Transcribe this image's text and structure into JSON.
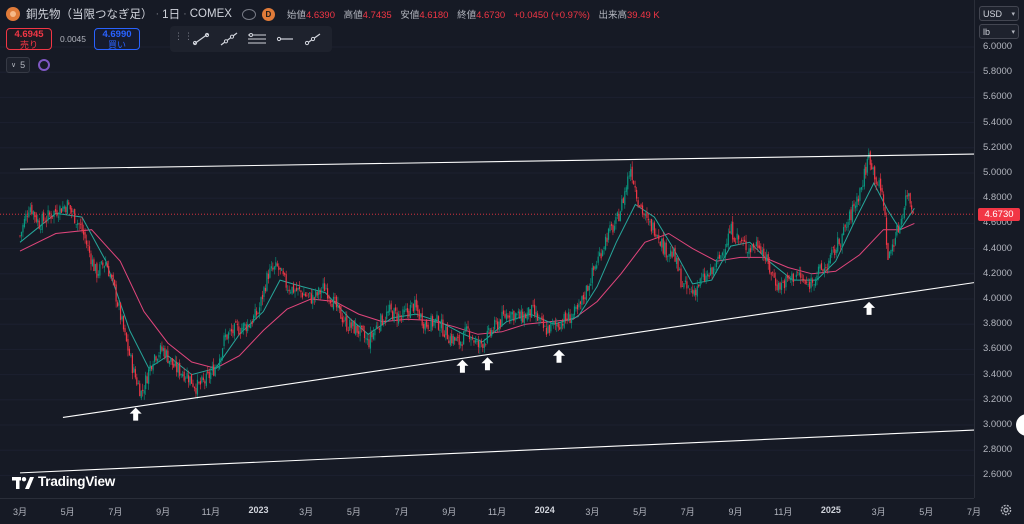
{
  "legend": {
    "symbol_icon": "copper-symbol-icon",
    "title": "銅先物（当限つなぎ足）",
    "interval": "1日",
    "exchange": "COMEX",
    "badge": "D",
    "open_label": "始値",
    "open": "4.6390",
    "high_label": "高値",
    "high": "4.7435",
    "low_label": "安値",
    "low": "4.6180",
    "close_label": "終値",
    "close": "4.6730",
    "change": "+0.0450 (+0.97%)",
    "volume_label": "出来高",
    "volume": "39.49 K"
  },
  "trade": {
    "sell_price": "4.6945",
    "sell_label": "売り",
    "spread": "0.0045",
    "buy_price": "4.6990",
    "buy_label": "買い"
  },
  "indicators": {
    "count": "5",
    "toggle_icon": "chevron-down-icon"
  },
  "drawing_tools": [
    "trend-line-icon",
    "extended-line-icon",
    "parallel-channel-icon",
    "horizontal-ray-icon",
    "info-line-icon"
  ],
  "currency_select": "USD",
  "unit_select": "lb",
  "last_price_badge": "4.6730",
  "colors": {
    "background": "#161a25",
    "up": "#089981",
    "down": "#f23645",
    "ma_fast": "#26a69a",
    "ma_slow": "#e0457b",
    "trendline": "#ffffff",
    "price_line": "#f23645"
  },
  "brand": "TradingView",
  "chart_data": {
    "type": "candlestick",
    "y_ticks": [
      "6.0000",
      "5.8000",
      "5.6000",
      "5.4000",
      "5.2000",
      "5.0000",
      "4.8000",
      "4.6000",
      "4.4000",
      "4.2000",
      "4.0000",
      "3.8000",
      "3.6000",
      "3.4000",
      "3.2000",
      "3.0000",
      "2.8000",
      "2.6000"
    ],
    "x_ticks": [
      {
        "label": "3月",
        "bold": false
      },
      {
        "label": "5月",
        "bold": false
      },
      {
        "label": "7月",
        "bold": false
      },
      {
        "label": "9月",
        "bold": false
      },
      {
        "label": "11月",
        "bold": false
      },
      {
        "label": "2023",
        "bold": true
      },
      {
        "label": "3月",
        "bold": false
      },
      {
        "label": "5月",
        "bold": false
      },
      {
        "label": "7月",
        "bold": false
      },
      {
        "label": "9月",
        "bold": false
      },
      {
        "label": "11月",
        "bold": false
      },
      {
        "label": "2024",
        "bold": true
      },
      {
        "label": "3月",
        "bold": false
      },
      {
        "label": "5月",
        "bold": false
      },
      {
        "label": "7月",
        "bold": false
      },
      {
        "label": "9月",
        "bold": false
      },
      {
        "label": "11月",
        "bold": false
      },
      {
        "label": "2025",
        "bold": true
      },
      {
        "label": "3月",
        "bold": false
      },
      {
        "label": "5月",
        "bold": false
      },
      {
        "label": "7月",
        "bold": false
      }
    ],
    "x_months_from": "2022-03",
    "y_range": [
      2.52,
      6.05
    ],
    "last_price": 4.673,
    "closes_anchor": [
      {
        "m": 0.0,
        "v": 4.5
      },
      {
        "m": 0.4,
        "v": 4.75
      },
      {
        "m": 0.8,
        "v": 4.6
      },
      {
        "m": 1.5,
        "v": 4.7
      },
      {
        "m": 2.0,
        "v": 4.75
      },
      {
        "m": 2.6,
        "v": 4.55
      },
      {
        "m": 3.2,
        "v": 4.2
      },
      {
        "m": 3.6,
        "v": 4.3
      },
      {
        "m": 4.0,
        "v": 4.05
      },
      {
        "m": 4.4,
        "v": 3.7
      },
      {
        "m": 4.8,
        "v": 3.4
      },
      {
        "m": 5.1,
        "v": 3.25
      },
      {
        "m": 5.6,
        "v": 3.55
      },
      {
        "m": 6.0,
        "v": 3.6
      },
      {
        "m": 6.5,
        "v": 3.45
      },
      {
        "m": 7.0,
        "v": 3.4
      },
      {
        "m": 7.4,
        "v": 3.3
      },
      {
        "m": 7.8,
        "v": 3.35
      },
      {
        "m": 8.3,
        "v": 3.5
      },
      {
        "m": 8.6,
        "v": 3.7
      },
      {
        "m": 9.0,
        "v": 3.75
      },
      {
        "m": 9.6,
        "v": 3.8
      },
      {
        "m": 10.0,
        "v": 3.9
      },
      {
        "m": 10.4,
        "v": 4.2
      },
      {
        "m": 10.8,
        "v": 4.25
      },
      {
        "m": 11.2,
        "v": 4.1
      },
      {
        "m": 11.8,
        "v": 4.05
      },
      {
        "m": 12.3,
        "v": 4.0
      },
      {
        "m": 12.8,
        "v": 4.1
      },
      {
        "m": 13.2,
        "v": 3.95
      },
      {
        "m": 13.7,
        "v": 3.8
      },
      {
        "m": 14.2,
        "v": 3.75
      },
      {
        "m": 14.6,
        "v": 3.65
      },
      {
        "m": 15.0,
        "v": 3.8
      },
      {
        "m": 15.5,
        "v": 3.9
      },
      {
        "m": 16.0,
        "v": 3.85
      },
      {
        "m": 16.5,
        "v": 3.95
      },
      {
        "m": 17.0,
        "v": 3.8
      },
      {
        "m": 17.5,
        "v": 3.82
      },
      {
        "m": 18.0,
        "v": 3.7
      },
      {
        "m": 18.4,
        "v": 3.65
      },
      {
        "m": 18.8,
        "v": 3.75
      },
      {
        "m": 19.2,
        "v": 3.62
      },
      {
        "m": 19.6,
        "v": 3.7
      },
      {
        "m": 20.0,
        "v": 3.8
      },
      {
        "m": 20.5,
        "v": 3.9
      },
      {
        "m": 21.0,
        "v": 3.85
      },
      {
        "m": 21.5,
        "v": 3.9
      },
      {
        "m": 22.0,
        "v": 3.75
      },
      {
        "m": 22.5,
        "v": 3.8
      },
      {
        "m": 23.0,
        "v": 3.85
      },
      {
        "m": 23.4,
        "v": 3.9
      },
      {
        "m": 23.8,
        "v": 4.1
      },
      {
        "m": 24.2,
        "v": 4.3
      },
      {
        "m": 24.6,
        "v": 4.5
      },
      {
        "m": 25.0,
        "v": 4.6
      },
      {
        "m": 25.3,
        "v": 4.8
      },
      {
        "m": 25.6,
        "v": 5.05
      },
      {
        "m": 25.9,
        "v": 4.8
      },
      {
        "m": 26.3,
        "v": 4.6
      },
      {
        "m": 26.7,
        "v": 4.55
      },
      {
        "m": 27.0,
        "v": 4.4
      },
      {
        "m": 27.4,
        "v": 4.35
      },
      {
        "m": 27.8,
        "v": 4.1
      },
      {
        "m": 28.2,
        "v": 4.05
      },
      {
        "m": 28.6,
        "v": 4.15
      },
      {
        "m": 29.0,
        "v": 4.2
      },
      {
        "m": 29.4,
        "v": 4.35
      },
      {
        "m": 29.8,
        "v": 4.55
      },
      {
        "m": 30.2,
        "v": 4.45
      },
      {
        "m": 30.6,
        "v": 4.4
      },
      {
        "m": 31.0,
        "v": 4.45
      },
      {
        "m": 31.4,
        "v": 4.25
      },
      {
        "m": 31.8,
        "v": 4.1
      },
      {
        "m": 32.2,
        "v": 4.15
      },
      {
        "m": 32.6,
        "v": 4.2
      },
      {
        "m": 33.0,
        "v": 4.1
      },
      {
        "m": 33.4,
        "v": 4.2
      },
      {
        "m": 33.8,
        "v": 4.25
      },
      {
        "m": 34.2,
        "v": 4.4
      },
      {
        "m": 34.6,
        "v": 4.55
      },
      {
        "m": 35.0,
        "v": 4.75
      },
      {
        "m": 35.3,
        "v": 4.9
      },
      {
        "m": 35.6,
        "v": 5.15
      },
      {
        "m": 35.9,
        "v": 4.95
      },
      {
        "m": 36.2,
        "v": 4.8
      },
      {
        "m": 36.4,
        "v": 4.3
      },
      {
        "m": 36.6,
        "v": 4.45
      },
      {
        "m": 36.9,
        "v": 4.6
      },
      {
        "m": 37.2,
        "v": 4.85
      },
      {
        "m": 37.5,
        "v": 4.67
      }
    ],
    "ma_fast_anchor": [
      {
        "m": 0.0,
        "v": 4.45
      },
      {
        "m": 1.5,
        "v": 4.68
      },
      {
        "m": 2.6,
        "v": 4.65
      },
      {
        "m": 3.6,
        "v": 4.3
      },
      {
        "m": 4.6,
        "v": 3.75
      },
      {
        "m": 5.4,
        "v": 3.45
      },
      {
        "m": 6.2,
        "v": 3.55
      },
      {
        "m": 7.2,
        "v": 3.4
      },
      {
        "m": 8.2,
        "v": 3.45
      },
      {
        "m": 9.2,
        "v": 3.72
      },
      {
        "m": 10.2,
        "v": 3.9
      },
      {
        "m": 10.9,
        "v": 4.15
      },
      {
        "m": 11.8,
        "v": 4.1
      },
      {
        "m": 12.8,
        "v": 4.05
      },
      {
        "m": 13.8,
        "v": 3.85
      },
      {
        "m": 14.6,
        "v": 3.72
      },
      {
        "m": 15.6,
        "v": 3.85
      },
      {
        "m": 16.6,
        "v": 3.88
      },
      {
        "m": 17.6,
        "v": 3.82
      },
      {
        "m": 18.6,
        "v": 3.72
      },
      {
        "m": 19.4,
        "v": 3.66
      },
      {
        "m": 20.4,
        "v": 3.82
      },
      {
        "m": 21.4,
        "v": 3.88
      },
      {
        "m": 22.4,
        "v": 3.8
      },
      {
        "m": 23.4,
        "v": 3.86
      },
      {
        "m": 24.2,
        "v": 4.1
      },
      {
        "m": 25.0,
        "v": 4.45
      },
      {
        "m": 25.8,
        "v": 4.75
      },
      {
        "m": 26.6,
        "v": 4.65
      },
      {
        "m": 27.4,
        "v": 4.4
      },
      {
        "m": 28.2,
        "v": 4.12
      },
      {
        "m": 29.0,
        "v": 4.15
      },
      {
        "m": 29.8,
        "v": 4.42
      },
      {
        "m": 30.6,
        "v": 4.45
      },
      {
        "m": 31.4,
        "v": 4.3
      },
      {
        "m": 32.4,
        "v": 4.15
      },
      {
        "m": 33.4,
        "v": 4.15
      },
      {
        "m": 34.2,
        "v": 4.3
      },
      {
        "m": 35.0,
        "v": 4.62
      },
      {
        "m": 35.8,
        "v": 4.92
      },
      {
        "m": 36.4,
        "v": 4.7
      },
      {
        "m": 36.9,
        "v": 4.55
      },
      {
        "m": 37.5,
        "v": 4.72
      }
    ],
    "ma_slow_anchor": [
      {
        "m": 0.0,
        "v": 4.38
      },
      {
        "m": 1.5,
        "v": 4.52
      },
      {
        "m": 3.0,
        "v": 4.55
      },
      {
        "m": 4.2,
        "v": 4.3
      },
      {
        "m": 5.2,
        "v": 3.9
      },
      {
        "m": 6.2,
        "v": 3.65
      },
      {
        "m": 7.2,
        "v": 3.5
      },
      {
        "m": 8.2,
        "v": 3.45
      },
      {
        "m": 9.2,
        "v": 3.55
      },
      {
        "m": 10.2,
        "v": 3.75
      },
      {
        "m": 11.2,
        "v": 3.92
      },
      {
        "m": 12.2,
        "v": 4.0
      },
      {
        "m": 13.2,
        "v": 3.98
      },
      {
        "m": 14.2,
        "v": 3.88
      },
      {
        "m": 15.2,
        "v": 3.82
      },
      {
        "m": 16.2,
        "v": 3.84
      },
      {
        "m": 17.2,
        "v": 3.83
      },
      {
        "m": 18.2,
        "v": 3.78
      },
      {
        "m": 19.2,
        "v": 3.72
      },
      {
        "m": 20.2,
        "v": 3.74
      },
      {
        "m": 21.2,
        "v": 3.8
      },
      {
        "m": 22.2,
        "v": 3.82
      },
      {
        "m": 23.2,
        "v": 3.84
      },
      {
        "m": 24.2,
        "v": 3.98
      },
      {
        "m": 25.2,
        "v": 4.2
      },
      {
        "m": 26.2,
        "v": 4.45
      },
      {
        "m": 27.2,
        "v": 4.52
      },
      {
        "m": 28.2,
        "v": 4.4
      },
      {
        "m": 29.2,
        "v": 4.3
      },
      {
        "m": 30.2,
        "v": 4.33
      },
      {
        "m": 31.2,
        "v": 4.33
      },
      {
        "m": 32.2,
        "v": 4.25
      },
      {
        "m": 33.2,
        "v": 4.2
      },
      {
        "m": 34.2,
        "v": 4.22
      },
      {
        "m": 35.2,
        "v": 4.35
      },
      {
        "m": 36.2,
        "v": 4.55
      },
      {
        "m": 36.9,
        "v": 4.55
      },
      {
        "m": 37.5,
        "v": 4.6
      }
    ],
    "trendlines": [
      {
        "name": "upper-channel-line",
        "from": {
          "m": 0.0,
          "v": 5.03
        },
        "to": {
          "m": 40.0,
          "v": 5.15
        }
      },
      {
        "name": "support-line",
        "from": {
          "m": 1.8,
          "v": 3.06
        },
        "to": {
          "m": 40.0,
          "v": 4.13
        }
      },
      {
        "name": "lower-channel-line",
        "from": {
          "m": 0.0,
          "v": 2.62
        },
        "to": {
          "m": 40.0,
          "v": 2.96
        }
      }
    ],
    "markers": [
      {
        "m": 4.85,
        "v": 3.09
      },
      {
        "m": 18.55,
        "v": 3.47
      },
      {
        "m": 19.6,
        "v": 3.49
      },
      {
        "m": 22.6,
        "v": 3.55
      },
      {
        "m": 35.6,
        "v": 3.93
      }
    ]
  }
}
